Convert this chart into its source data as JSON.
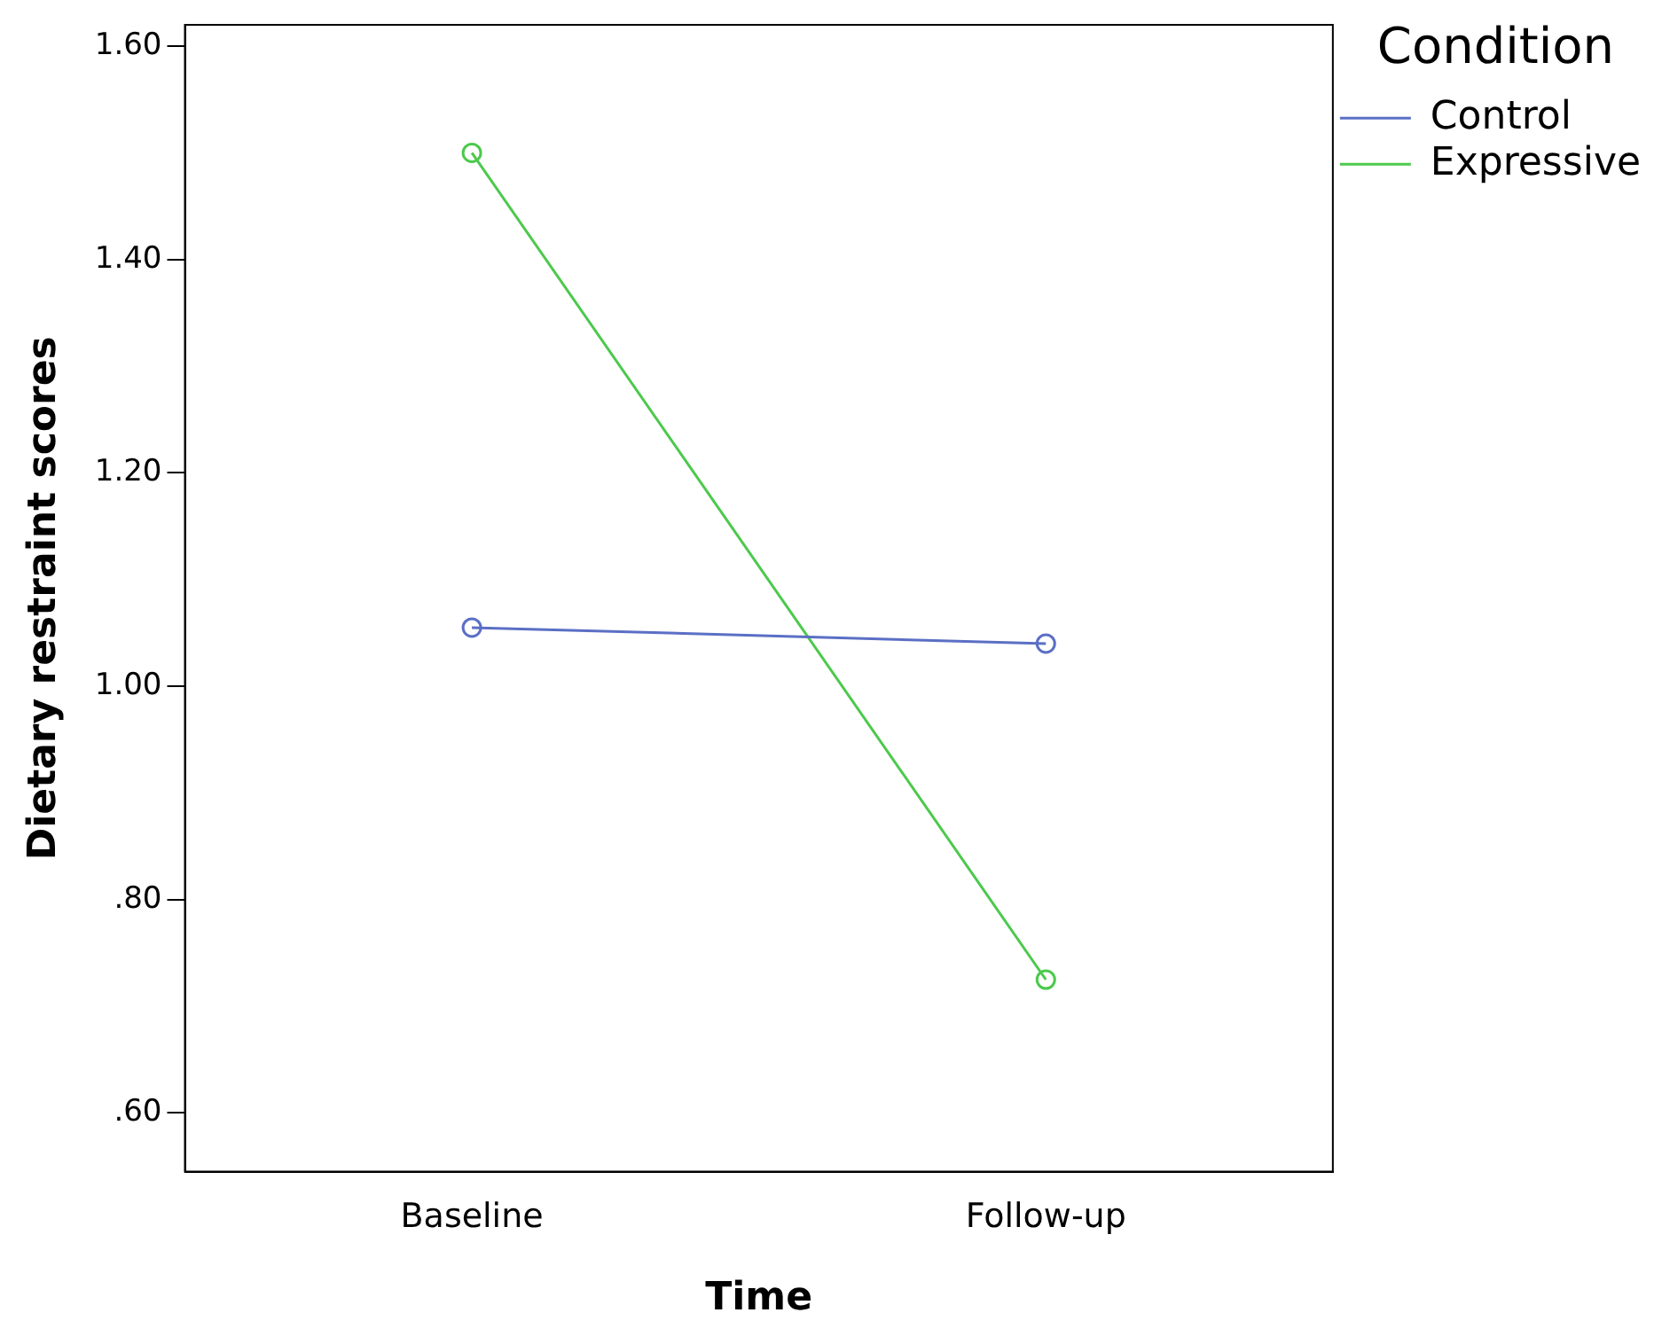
{
  "chart_data": {
    "type": "line",
    "xlabel": "Time",
    "ylabel": "Dietary restraint scores",
    "legend_title": "Condition",
    "legend": "top right",
    "marker": "circle",
    "grid": false,
    "categories": [
      "Baseline",
      "Follow-up"
    ],
    "series": [
      {
        "name": "Control",
        "color": "#5b6fc4",
        "values": [
          1.055,
          1.04
        ]
      },
      {
        "name": "Expressive",
        "color": "#4cc94c",
        "values": [
          1.5,
          0.725
        ]
      }
    ],
    "ylim": [
      0.545,
      1.62
    ],
    "yticks": [
      {
        "value": 0.6,
        "label": ".60"
      },
      {
        "value": 0.8,
        "label": ".80"
      },
      {
        "value": 1.0,
        "label": "1.00"
      },
      {
        "value": 1.2,
        "label": "1.20"
      },
      {
        "value": 1.4,
        "label": "1.40"
      },
      {
        "value": 1.6,
        "label": "1.60"
      }
    ]
  }
}
